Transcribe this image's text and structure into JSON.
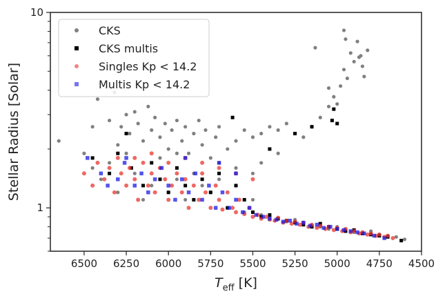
{
  "chart_data": {
    "type": "scatter",
    "xlabel_main": "T",
    "xlabel_sub": "eff",
    "xlabel_unit": " [K]",
    "ylabel": "Stellar Radius [Solar]",
    "x_inverted": true,
    "xlim": [
      6700,
      4500
    ],
    "ylim": [
      0.6,
      10
    ],
    "y_scale": "log",
    "x_ticks": [
      6500,
      6250,
      6000,
      5750,
      5500,
      5250,
      5000,
      4750,
      4500
    ],
    "y_major_ticks": [
      1,
      10
    ],
    "y_minor_ticks": [
      0.6,
      0.7,
      0.8,
      0.9,
      2,
      3,
      4,
      5,
      6,
      7,
      8,
      9
    ],
    "legend_position": "upper-left",
    "series": [
      {
        "name": "CKS",
        "marker": "circle",
        "color": "#808080",
        "points": [
          [
            6650,
            2.2
          ],
          [
            6450,
            2.6
          ],
          [
            6420,
            3.6
          ],
          [
            6350,
            2.8
          ],
          [
            6320,
            3.9
          ],
          [
            6300,
            2.1
          ],
          [
            6280,
            2.6
          ],
          [
            6250,
            3.0
          ],
          [
            6230,
            2.4
          ],
          [
            6200,
            3.1
          ],
          [
            6180,
            2.7
          ],
          [
            6150,
            2.2
          ],
          [
            6120,
            3.3
          ],
          [
            6100,
            2.5
          ],
          [
            6080,
            2.9
          ],
          [
            6050,
            2.3
          ],
          [
            6020,
            2.7
          ],
          [
            6000,
            2.0
          ],
          [
            5980,
            2.5
          ],
          [
            5950,
            2.8
          ],
          [
            5920,
            2.2
          ],
          [
            5900,
            2.6
          ],
          [
            5880,
            1.9
          ],
          [
            5850,
            2.4
          ],
          [
            5820,
            2.8
          ],
          [
            5800,
            2.1
          ],
          [
            5780,
            2.5
          ],
          [
            5750,
            1.8
          ],
          [
            5720,
            2.3
          ],
          [
            5700,
            2.6
          ],
          [
            5650,
            2.0
          ],
          [
            5600,
            2.2
          ],
          [
            5550,
            2.5
          ],
          [
            5500,
            2.3
          ],
          [
            5450,
            2.4
          ],
          [
            5400,
            2.6
          ],
          [
            5350,
            2.5
          ],
          [
            5300,
            2.7
          ],
          [
            5250,
            2.4
          ],
          [
            5200,
            2.3
          ],
          [
            5150,
            2.6
          ],
          [
            5100,
            2.9
          ],
          [
            5050,
            3.3
          ],
          [
            5020,
            3.7
          ],
          [
            5000,
            3.4
          ],
          [
            4980,
            4.2
          ],
          [
            4960,
            5.1
          ],
          [
            4940,
            4.6
          ],
          [
            4920,
            6.2
          ],
          [
            4900,
            5.6
          ],
          [
            4880,
            7.1
          ],
          [
            4860,
            6.0
          ],
          [
            4850,
            5.3
          ],
          [
            4840,
            4.7
          ],
          [
            4820,
            6.4
          ],
          [
            5130,
            6.6
          ],
          [
            5050,
            4.1
          ],
          [
            4960,
            8.1
          ],
          [
            4950,
            7.3
          ],
          [
            4870,
            5.9
          ],
          [
            6400,
            1.4
          ],
          [
            6300,
            1.2
          ],
          [
            6200,
            1.5
          ],
          [
            6150,
            1.1
          ],
          [
            6100,
            1.3
          ],
          [
            6050,
            1.6
          ],
          [
            6000,
            1.2
          ],
          [
            5950,
            1.4
          ],
          [
            5900,
            1.1
          ],
          [
            5850,
            1.5
          ],
          [
            5800,
            1.3
          ],
          [
            5750,
            1.2
          ],
          [
            5700,
            1.4
          ],
          [
            5650,
            1.0
          ],
          [
            5600,
            1.3
          ],
          [
            5550,
            0.95
          ],
          [
            5500,
            1.1
          ],
          [
            5450,
            0.92
          ],
          [
            5400,
            0.9
          ],
          [
            5350,
            0.88
          ],
          [
            5300,
            0.85
          ],
          [
            5250,
            0.87
          ],
          [
            5200,
            0.83
          ],
          [
            5150,
            0.81
          ],
          [
            5100,
            0.8
          ],
          [
            5050,
            0.78
          ],
          [
            5000,
            0.8
          ],
          [
            4950,
            0.77
          ],
          [
            4900,
            0.75
          ],
          [
            4850,
            0.74
          ],
          [
            4800,
            0.76
          ],
          [
            4750,
            0.73
          ],
          [
            4700,
            0.72
          ],
          [
            4650,
            0.71
          ],
          [
            4600,
            0.69
          ],
          [
            6250,
            1.9
          ],
          [
            6350,
            1.7
          ],
          [
            6050,
            1.8
          ],
          [
            5950,
            1.9
          ],
          [
            5700,
            1.7
          ],
          [
            5600,
            1.6
          ],
          [
            5500,
            1.5
          ],
          [
            5450,
            1.7
          ],
          [
            5350,
            1.9
          ],
          [
            6500,
            1.9
          ],
          [
            6450,
            1.6
          ]
        ]
      },
      {
        "name": "CKS multis",
        "marker": "square",
        "color": "#000000",
        "points": [
          [
            6450,
            1.8
          ],
          [
            6350,
            1.5
          ],
          [
            6300,
            1.9
          ],
          [
            6250,
            2.4
          ],
          [
            6220,
            1.6
          ],
          [
            6150,
            1.3
          ],
          [
            6100,
            1.7
          ],
          [
            6050,
            1.4
          ],
          [
            6000,
            1.2
          ],
          [
            5950,
            1.6
          ],
          [
            5900,
            1.3
          ],
          [
            5850,
            1.1
          ],
          [
            5800,
            1.4
          ],
          [
            5750,
            1.2
          ],
          [
            5700,
            1.5
          ],
          [
            5650,
            1.0
          ],
          [
            5600,
            1.3
          ],
          [
            5550,
            1.1
          ],
          [
            5500,
            0.95
          ],
          [
            5450,
            0.9
          ],
          [
            5400,
            0.92
          ],
          [
            5350,
            0.88
          ],
          [
            5300,
            0.86
          ],
          [
            5250,
            0.84
          ],
          [
            5200,
            0.82
          ],
          [
            5150,
            0.8
          ],
          [
            5100,
            0.83
          ],
          [
            5050,
            0.8
          ],
          [
            5000,
            0.78
          ],
          [
            4950,
            0.76
          ],
          [
            4900,
            0.77
          ],
          [
            4850,
            0.74
          ],
          [
            4800,
            0.73
          ],
          [
            4750,
            0.72
          ],
          [
            4700,
            0.71
          ],
          [
            4620,
            0.68
          ],
          [
            5620,
            2.9
          ],
          [
            5400,
            2.0
          ],
          [
            5250,
            2.4
          ],
          [
            5150,
            2.6
          ],
          [
            5030,
            2.8
          ],
          [
            5020,
            3.2
          ],
          [
            5000,
            2.7
          ]
        ]
      },
      {
        "name": "Singles Kp < 14.2",
        "marker": "circle",
        "color": "#e8352e",
        "points": [
          [
            6500,
            1.5
          ],
          [
            6450,
            1.3
          ],
          [
            6420,
            1.7
          ],
          [
            6380,
            1.4
          ],
          [
            6350,
            1.6
          ],
          [
            6320,
            1.2
          ],
          [
            6300,
            1.8
          ],
          [
            6280,
            1.5
          ],
          [
            6250,
            1.3
          ],
          [
            6230,
            1.6
          ],
          [
            6200,
            1.4
          ],
          [
            6180,
            1.1
          ],
          [
            6150,
            1.7
          ],
          [
            6120,
            1.3
          ],
          [
            6100,
            1.5
          ],
          [
            6080,
            1.2
          ],
          [
            6050,
            1.6
          ],
          [
            6020,
            1.4
          ],
          [
            6000,
            1.1
          ],
          [
            5980,
            1.3
          ],
          [
            5950,
            1.5
          ],
          [
            5920,
            1.2
          ],
          [
            5900,
            1.4
          ],
          [
            5880,
            1.0
          ],
          [
            5850,
            1.3
          ],
          [
            5820,
            1.1
          ],
          [
            5800,
            1.5
          ],
          [
            5780,
            1.2
          ],
          [
            5750,
            1.0
          ],
          [
            5720,
            1.3
          ],
          [
            5700,
            1.1
          ],
          [
            5680,
            0.98
          ],
          [
            5650,
            1.2
          ],
          [
            5620,
            1.0
          ],
          [
            5600,
            0.95
          ],
          [
            5580,
            1.1
          ],
          [
            5550,
            0.93
          ],
          [
            5520,
            1.0
          ],
          [
            5500,
            0.9
          ],
          [
            5470,
            0.92
          ],
          [
            5450,
            0.88
          ],
          [
            5420,
            0.9
          ],
          [
            5400,
            0.87
          ],
          [
            5370,
            0.86
          ],
          [
            5350,
            0.89
          ],
          [
            5320,
            0.84
          ],
          [
            5300,
            0.86
          ],
          [
            5270,
            0.83
          ],
          [
            5250,
            0.85
          ],
          [
            5220,
            0.82
          ],
          [
            5200,
            0.84
          ],
          [
            5170,
            0.8
          ],
          [
            5150,
            0.82
          ],
          [
            5120,
            0.79
          ],
          [
            5100,
            0.81
          ],
          [
            5070,
            0.78
          ],
          [
            5050,
            0.8
          ],
          [
            5020,
            0.77
          ],
          [
            5000,
            0.79
          ],
          [
            4970,
            0.76
          ],
          [
            4950,
            0.78
          ],
          [
            4920,
            0.75
          ],
          [
            4900,
            0.76
          ],
          [
            4870,
            0.74
          ],
          [
            4850,
            0.75
          ],
          [
            4820,
            0.73
          ],
          [
            4800,
            0.74
          ],
          [
            4770,
            0.72
          ],
          [
            4750,
            0.73
          ],
          [
            4720,
            0.71
          ],
          [
            4700,
            0.72
          ],
          [
            4670,
            0.7
          ],
          [
            6100,
            1.9
          ],
          [
            6200,
            1.8
          ],
          [
            6000,
            1.7
          ],
          [
            5900,
            1.8
          ],
          [
            5800,
            1.7
          ],
          [
            5700,
            1.6
          ],
          [
            5600,
            1.5
          ],
          [
            5500,
            1.4
          ]
        ]
      },
      {
        "name": "Multis Kp < 14.2",
        "marker": "square",
        "color": "#1a1ae6",
        "points": [
          [
            6480,
            1.8
          ],
          [
            6400,
            1.5
          ],
          [
            6360,
            1.3
          ],
          [
            6300,
            1.4
          ],
          [
            6260,
            1.7
          ],
          [
            6200,
            1.3
          ],
          [
            6160,
            1.5
          ],
          [
            6120,
            1.2
          ],
          [
            6080,
            1.4
          ],
          [
            6040,
            1.6
          ],
          [
            6000,
            1.3
          ],
          [
            5960,
            1.1
          ],
          [
            5920,
            1.4
          ],
          [
            5880,
            1.2
          ],
          [
            5840,
            1.5
          ],
          [
            5800,
            1.1
          ],
          [
            5760,
            1.3
          ],
          [
            5720,
            1.0
          ],
          [
            5680,
            1.2
          ],
          [
            5640,
            1.0
          ],
          [
            5600,
            1.1
          ],
          [
            5560,
            0.95
          ],
          [
            5520,
            1.0
          ],
          [
            5480,
            0.92
          ],
          [
            5440,
            0.9
          ],
          [
            5400,
            0.88
          ],
          [
            5360,
            0.87
          ],
          [
            5320,
            0.85
          ],
          [
            5280,
            0.86
          ],
          [
            5240,
            0.83
          ],
          [
            5200,
            0.84
          ],
          [
            5160,
            0.81
          ],
          [
            5120,
            0.82
          ],
          [
            5080,
            0.79
          ],
          [
            5040,
            0.8
          ],
          [
            5000,
            0.78
          ],
          [
            4960,
            0.77
          ],
          [
            4920,
            0.76
          ],
          [
            4880,
            0.75
          ],
          [
            4840,
            0.74
          ],
          [
            4780,
            0.72
          ],
          [
            4720,
            0.7
          ],
          [
            5900,
            1.8
          ],
          [
            5700,
            1.7
          ],
          [
            5600,
            1.5
          ],
          [
            6250,
            1.8
          ]
        ]
      }
    ]
  }
}
